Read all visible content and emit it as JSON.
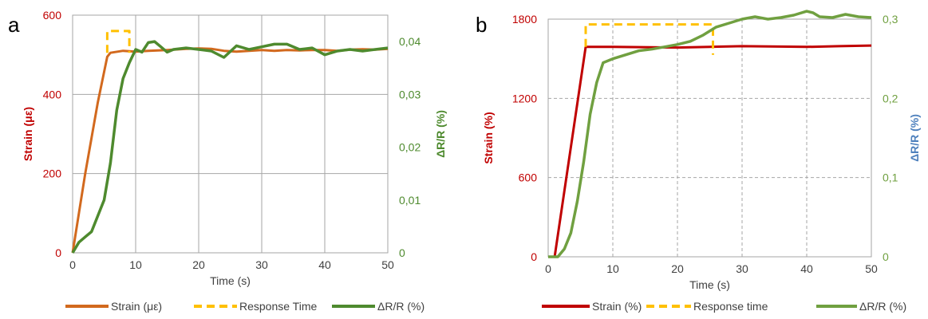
{
  "chart_data": [
    {
      "type": "line",
      "panel_label": "a",
      "xlabel": "Time (s)",
      "ylabel": "Strain (με)",
      "y2label": "ΔR/R (%)",
      "xlim": [
        0,
        50
      ],
      "ylim": [
        0,
        600
      ],
      "y2lim": [
        0,
        0.045
      ],
      "x_ticks": [
        "0",
        "10",
        "20",
        "30",
        "40",
        "50"
      ],
      "y_ticks": [
        "0",
        "200",
        "400",
        "600"
      ],
      "y2_ticks": [
        "0",
        "0,01",
        "0,02",
        "0,03",
        "0,04"
      ],
      "grid": true,
      "legend": "bottom",
      "colors": {
        "strain": "#d2691e",
        "response": "#ffc000",
        "resistance": "#4e8a2e",
        "left_axis": "#c00000",
        "right_axis": "#4e8a2e"
      },
      "series": [
        {
          "name": "Strain (με)",
          "axis": "left",
          "x": [
            0,
            1,
            2,
            3,
            4,
            5.5,
            6,
            8,
            10,
            12,
            15,
            18,
            20,
            22,
            24,
            26,
            28,
            30,
            32,
            34,
            36,
            38,
            40,
            42,
            44,
            46,
            48,
            50
          ],
          "values": [
            0,
            100,
            200,
            290,
            380,
            495,
            505,
            510,
            508,
            510,
            512,
            515,
            516,
            515,
            510,
            508,
            510,
            512,
            510,
            512,
            511,
            512,
            512,
            510,
            513,
            514,
            513,
            515
          ]
        },
        {
          "name": "Response Time",
          "axis": "left",
          "style": "dashed",
          "x": [
            5.5,
            5.5,
            9,
            9
          ],
          "values": [
            505,
            560,
            560,
            505
          ]
        },
        {
          "name": "ΔR/R (%)",
          "axis": "right",
          "x": [
            0,
            1,
            2,
            3,
            4,
            5,
            6,
            7,
            8,
            9,
            10,
            11,
            12,
            13,
            14,
            15,
            16,
            18,
            20,
            22,
            24,
            26,
            28,
            30,
            32,
            34,
            36,
            38,
            40,
            42,
            44,
            46,
            48,
            50
          ],
          "values": [
            0,
            0.002,
            0.003,
            0.004,
            0.007,
            0.01,
            0.017,
            0.027,
            0.033,
            0.036,
            0.0385,
            0.038,
            0.0398,
            0.04,
            0.039,
            0.038,
            0.0385,
            0.0388,
            0.0385,
            0.0382,
            0.037,
            0.0392,
            0.0385,
            0.039,
            0.0395,
            0.0395,
            0.0385,
            0.0388,
            0.0375,
            0.0382,
            0.0385,
            0.0382,
            0.0385,
            0.0388
          ]
        }
      ]
    },
    {
      "type": "line",
      "panel_label": "b",
      "xlabel": "Time (s)",
      "ylabel": "Strain (%)",
      "y2label": "ΔR/R (%)",
      "xlim": [
        0,
        50
      ],
      "ylim": [
        0,
        1800
      ],
      "y2lim": [
        0,
        0.3
      ],
      "x_ticks": [
        "0",
        "10",
        "20",
        "30",
        "40",
        "50"
      ],
      "y_ticks": [
        "0",
        "600",
        "1200",
        "1800"
      ],
      "y2_ticks": [
        "0",
        "0,1",
        "0,2",
        "0,3"
      ],
      "grid": true,
      "legend": "bottom",
      "colors": {
        "strain": "#c00000",
        "response": "#ffc000",
        "resistance": "#70a040",
        "left_axis": "#c00000",
        "right_axis": "#70a040",
        "right_title": "#4f81bd"
      },
      "series": [
        {
          "name": "Strain (%)",
          "axis": "left",
          "x": [
            0,
            1,
            5.8,
            10,
            20,
            30,
            40,
            45,
            50
          ],
          "values": [
            0,
            0,
            1590,
            1590,
            1585,
            1595,
            1590,
            1595,
            1600
          ]
        },
        {
          "name": "Response time",
          "axis": "left",
          "style": "dashed",
          "x": [
            5.8,
            5.8,
            25.5,
            25.5
          ],
          "values": [
            1590,
            1760,
            1760,
            1530
          ]
        },
        {
          "name": "ΔR/R (%)",
          "axis": "right",
          "x": [
            0,
            1.5,
            2.5,
            3.5,
            4.5,
            5.5,
            6.5,
            7.5,
            8.5,
            10,
            12,
            14,
            16,
            18,
            20,
            22,
            24,
            26,
            28,
            30,
            32,
            34,
            36,
            38,
            40,
            41,
            42,
            44,
            46,
            48,
            50
          ],
          "values": [
            0,
            0,
            0.01,
            0.03,
            0.07,
            0.12,
            0.18,
            0.22,
            0.245,
            0.25,
            0.255,
            0.26,
            0.262,
            0.265,
            0.268,
            0.272,
            0.28,
            0.29,
            0.295,
            0.3,
            0.303,
            0.3,
            0.302,
            0.305,
            0.31,
            0.308,
            0.303,
            0.302,
            0.306,
            0.303,
            0.302
          ]
        }
      ]
    }
  ],
  "legends": [
    {
      "items": [
        {
          "label": "Strain (με)",
          "color": "#d2691e",
          "style": "solid"
        },
        {
          "label": "Response Time",
          "color": "#ffc000",
          "style": "dashed"
        },
        {
          "label": "ΔR/R (%)",
          "color": "#4e8a2e",
          "style": "solid"
        }
      ]
    },
    {
      "items": [
        {
          "label": "Strain (%)",
          "color": "#c00000",
          "style": "solid"
        },
        {
          "label": "Response time",
          "color": "#ffc000",
          "style": "dashed"
        },
        {
          "label": "ΔR/R (%)",
          "color": "#70a040",
          "style": "solid"
        }
      ]
    }
  ]
}
